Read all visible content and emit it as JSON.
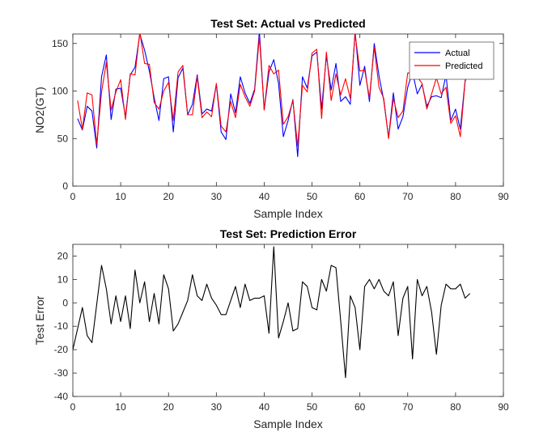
{
  "chart_data": [
    {
      "type": "line",
      "title": "Test Set: Actual vs Predicted",
      "xlabel": "Sample Index",
      "ylabel": "NO2(GT)",
      "xlim": [
        0,
        90
      ],
      "ylim": [
        0,
        160
      ],
      "xticks": [
        0,
        10,
        20,
        30,
        40,
        50,
        60,
        70,
        80,
        90
      ],
      "yticks": [
        0,
        50,
        100,
        150
      ],
      "grid": false,
      "legend_position": "top-right",
      "x": [
        1,
        2,
        3,
        4,
        5,
        6,
        7,
        8,
        9,
        10,
        11,
        12,
        13,
        14,
        15,
        16,
        17,
        18,
        19,
        20,
        21,
        22,
        23,
        24,
        25,
        26,
        27,
        28,
        29,
        30,
        31,
        32,
        33,
        34,
        35,
        36,
        37,
        38,
        39,
        40,
        41,
        42,
        43,
        44,
        45,
        46,
        47,
        48,
        49,
        50,
        51,
        52,
        53,
        54,
        55,
        56,
        57,
        58,
        59,
        60,
        61,
        62,
        63,
        64,
        65,
        66,
        67,
        68,
        69,
        70,
        71,
        72,
        73,
        74,
        75,
        76,
        77,
        78,
        79,
        80,
        81,
        82,
        83
      ],
      "series": [
        {
          "name": "Actual",
          "color": "#0000ff",
          "values": [
            71,
            59,
            84,
            79,
            40,
            115,
            138,
            70,
            102,
            103,
            73,
            117,
            125,
            160,
            143,
            121,
            93,
            69,
            113,
            115,
            57,
            114,
            124,
            75,
            86,
            117,
            76,
            81,
            79,
            107,
            57,
            49,
            97,
            77,
            115,
            98,
            87,
            102,
            163,
            80,
            120,
            133,
            108,
            52,
            69,
            91,
            31,
            115,
            103,
            137,
            141,
            81,
            137,
            101,
            129,
            89,
            94,
            86,
            163,
            106,
            126,
            89,
            150,
            116,
            90,
            51,
            98,
            60,
            73,
            104,
            120,
            97,
            107,
            84,
            94,
            95,
            93,
            117,
            69,
            81,
            60,
            111,
            122
          ],
          "line_style": "solid"
        },
        {
          "name": "Predicted",
          "color": "#ff0000",
          "values": [
            90,
            60,
            98,
            96,
            44,
            99,
            130,
            80,
            99,
            112,
            70,
            118,
            117,
            162,
            129,
            128,
            88,
            81,
            100,
            109,
            69,
            120,
            127,
            75,
            75,
            115,
            72,
            78,
            73,
            108,
            63,
            57,
            89,
            72,
            107,
            94,
            84,
            100,
            157,
            80,
            127,
            118,
            122,
            65,
            73,
            90,
            42,
            106,
            99,
            140,
            144,
            71,
            141,
            90,
            118,
            96,
            113,
            92,
            160,
            121,
            122,
            93,
            146,
            104,
            92,
            50,
            92,
            72,
            79,
            119,
            119,
            115,
            108,
            81,
            97,
            114,
            97,
            104,
            66,
            74,
            52,
            110,
            124
          ],
          "line_style": "solid"
        }
      ]
    },
    {
      "type": "line",
      "title": "Test Set: Prediction Error",
      "xlabel": "Sample Index",
      "ylabel": "Test Error",
      "xlim": [
        0,
        90
      ],
      "ylim": [
        -40,
        25
      ],
      "xticks": [
        0,
        10,
        20,
        30,
        40,
        50,
        60,
        70,
        80,
        90
      ],
      "yticks": [
        -40,
        -30,
        -20,
        -10,
        0,
        10,
        20
      ],
      "grid": false,
      "series": [
        {
          "color": "#000000",
          "x": [
            0,
            2,
            3,
            4,
            6,
            7,
            8,
            9,
            10,
            11,
            12,
            13,
            14,
            15,
            16,
            17,
            18,
            19,
            20,
            21,
            22,
            23,
            24,
            25,
            26,
            27,
            28,
            29,
            30,
            31,
            32,
            33,
            34,
            35,
            36,
            37,
            38,
            39,
            40,
            41,
            42,
            43,
            44,
            45,
            46,
            47,
            48,
            49,
            50,
            51,
            52,
            53,
            54,
            55,
            56,
            57,
            58,
            59,
            60,
            61,
            62,
            63,
            64,
            65,
            66,
            67,
            68,
            69,
            70,
            71,
            72,
            73,
            74,
            75,
            76,
            77,
            78,
            79,
            80,
            81,
            82,
            83
          ],
          "values": [
            -20,
            -2,
            -14,
            -17,
            16,
            6,
            -9,
            3,
            -8,
            3,
            -11,
            14,
            0,
            9,
            -8,
            4,
            -9,
            12,
            6,
            -12,
            -9,
            -4,
            1,
            12,
            3,
            1,
            8,
            2,
            -1,
            -5,
            -5,
            1,
            7,
            -2,
            8,
            1,
            2,
            2,
            3,
            -13,
            24,
            -15,
            -8,
            0,
            -12,
            -11,
            9,
            7,
            -2,
            -3,
            10,
            5,
            16,
            15,
            -8,
            -32,
            3,
            -2,
            -20,
            7,
            10,
            6,
            10,
            5,
            3,
            9,
            -14,
            2,
            7,
            -24,
            10,
            3,
            7,
            -4,
            -22,
            -1,
            8,
            6,
            6,
            8,
            2,
            4
          ]
        }
      ]
    }
  ]
}
